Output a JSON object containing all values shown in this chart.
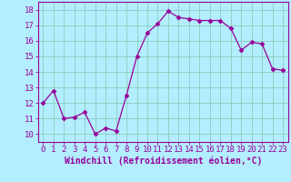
{
  "x": [
    0,
    1,
    2,
    3,
    4,
    5,
    6,
    7,
    8,
    9,
    10,
    11,
    12,
    13,
    14,
    15,
    16,
    17,
    18,
    19,
    20,
    21,
    22,
    23
  ],
  "y": [
    12.0,
    12.8,
    11.0,
    11.1,
    11.4,
    10.0,
    10.4,
    10.2,
    12.5,
    15.0,
    16.5,
    17.1,
    17.9,
    17.5,
    17.4,
    17.3,
    17.3,
    17.3,
    16.8,
    15.4,
    15.9,
    15.8,
    14.2,
    14.1
  ],
  "line_color": "#990099",
  "marker": "D",
  "marker_size": 2.5,
  "background_color": "#b3eeff",
  "grid_color": "#88ccbb",
  "xlabel": "Windchill (Refroidissement éolien,°C)",
  "xlabel_fontsize": 7,
  "xtick_labels": [
    "0",
    "1",
    "2",
    "3",
    "4",
    "5",
    "6",
    "7",
    "8",
    "9",
    "10",
    "11",
    "12",
    "13",
    "14",
    "15",
    "16",
    "17",
    "18",
    "19",
    "20",
    "21",
    "22",
    "23"
  ],
  "ytick_labels": [
    "10",
    "11",
    "12",
    "13",
    "14",
    "15",
    "16",
    "17",
    "18"
  ],
  "ytick_vals": [
    10,
    11,
    12,
    13,
    14,
    15,
    16,
    17,
    18
  ],
  "ylim": [
    9.5,
    18.5
  ],
  "xlim": [
    -0.5,
    23.5
  ],
  "tick_fontsize": 6.5
}
